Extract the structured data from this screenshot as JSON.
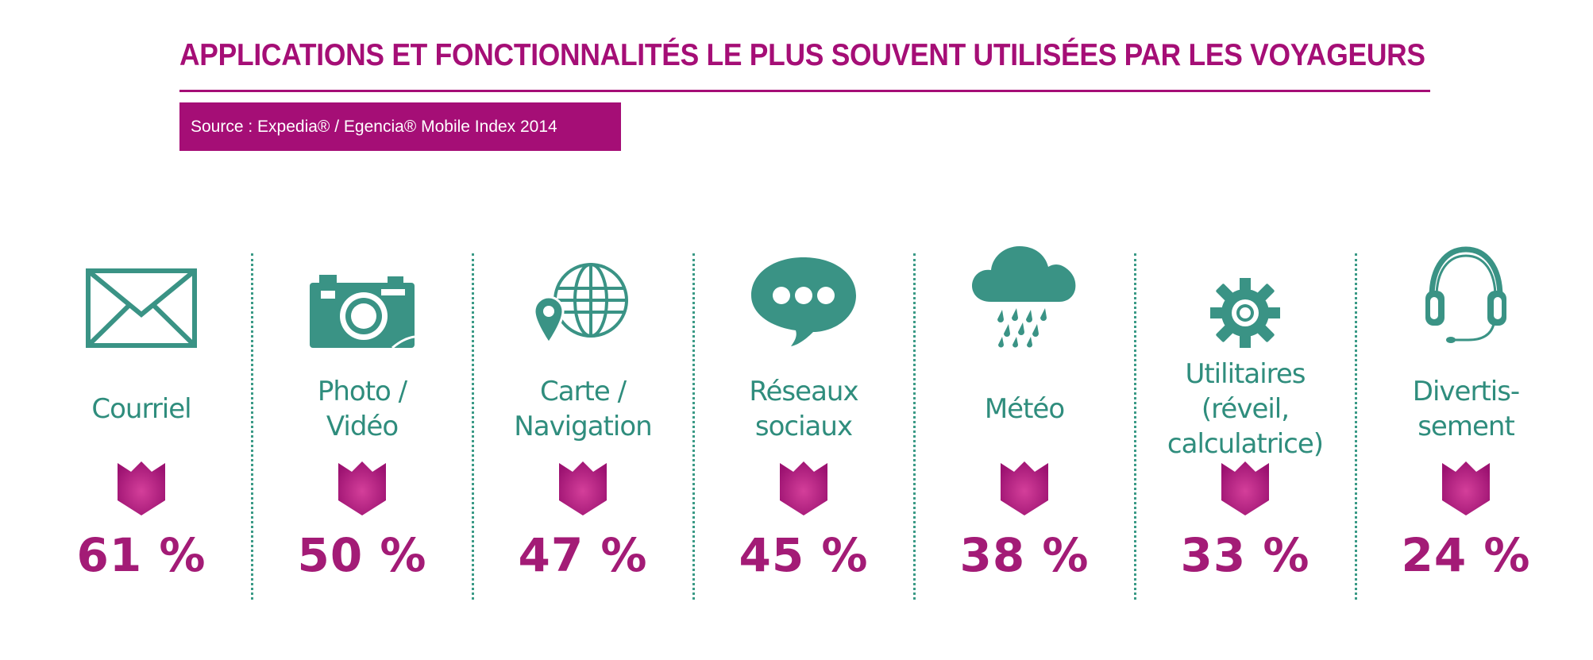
{
  "title": "APPLICATIONS ET FONCTIONNALITÉS LE PLUS SOUVENT UTILISÉES PAR LES VOYAGEURS",
  "source": "Source : Expedia® / Egencia® Mobile Index 2014",
  "colors": {
    "accent": "#a50e76",
    "icon": "#3a9385",
    "label": "#2f8d7d",
    "value": "#a31b76"
  },
  "chart_data": {
    "type": "bar",
    "title": "APPLICATIONS ET FONCTIONNALITÉS LE PLUS SOUVENT UTILISÉES PAR LES VOYAGEURS",
    "categories": [
      "Courriel",
      "Photo / Vidéo",
      "Carte / Navigation",
      "Réseaux sociaux",
      "Météo",
      "Utilitaires (réveil, calculatrice)",
      "Divertis-sement"
    ],
    "values": [
      61,
      50,
      47,
      45,
      38,
      33,
      24
    ],
    "unit": "%",
    "items": [
      {
        "label": "Courriel",
        "value": 61,
        "display": "61 %",
        "icon": "envelope-icon"
      },
      {
        "label": "Photo /\nVidéo",
        "value": 50,
        "display": "50 %",
        "icon": "camera-icon"
      },
      {
        "label": "Carte /\nNavigation",
        "value": 47,
        "display": "47 %",
        "icon": "globe-pin-icon"
      },
      {
        "label": "Réseaux\nsociaux",
        "value": 45,
        "display": "45 %",
        "icon": "speech-bubble-icon"
      },
      {
        "label": "Météo",
        "value": 38,
        "display": "38 %",
        "icon": "rain-cloud-icon"
      },
      {
        "label": "Utilitaires\n(réveil,\ncalculatrice)",
        "value": 33,
        "display": "33 %",
        "icon": "gear-icon"
      },
      {
        "label": "Divertis-\nsement",
        "value": 24,
        "display": "24 %",
        "icon": "headphones-icon"
      }
    ]
  }
}
